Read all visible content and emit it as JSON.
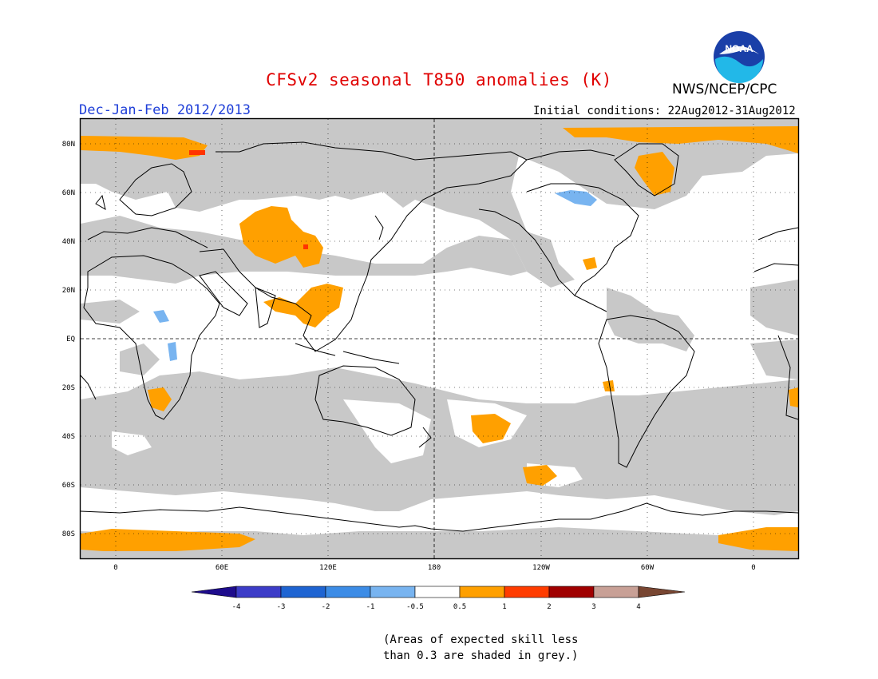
{
  "title": "CFSv2 seasonal T850 anomalies (K)",
  "agency": "NWS/NCEP/CPC",
  "logo_text": "NOAA",
  "season": "Dec-Jan-Feb 2012/2013",
  "initial_conditions": "Initial conditions: 22Aug2012-31Aug2012",
  "colors": {
    "title": "#e00000",
    "season": "#1f3fd8",
    "skill_grey": "#c8c8c8",
    "coast": "#000000",
    "orange": "#ffa000",
    "red": "#ff3300",
    "blue": "#78b4f0"
  },
  "latitude_labels": [
    "80N",
    "60N",
    "40N",
    "20N",
    "EQ",
    "20S",
    "40S",
    "60S",
    "80S"
  ],
  "longitude_labels": [
    "0",
    "60E",
    "120E",
    "180",
    "120W",
    "60W",
    "0"
  ],
  "colorbar": {
    "tick_labels": [
      "-4",
      "-3",
      "-2",
      "-1",
      "-0.5",
      "0.5",
      "1",
      "2",
      "3",
      "4"
    ],
    "colors": [
      "#1e0c8c",
      "#3c3cc8",
      "#1e64d2",
      "#3c8ce6",
      "#78b4f0",
      "#ffffff",
      "#ffa000",
      "#ff3c00",
      "#a00000",
      "#c8a096",
      "#784632"
    ]
  },
  "note_line1": "(Areas of expected skill less",
  "note_line2": "than 0.3 are shaded in grey.)"
}
